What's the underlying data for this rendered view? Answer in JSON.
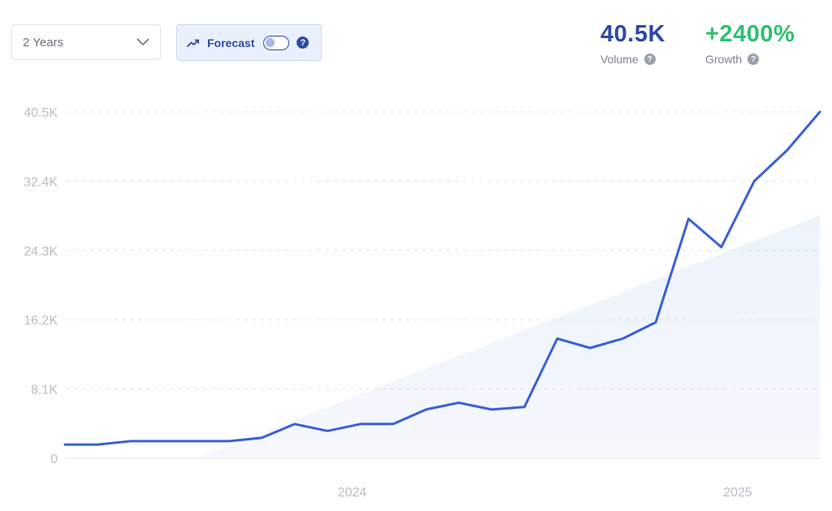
{
  "controls": {
    "range_label": "2 Years",
    "forecast_label": "Forecast",
    "forecast_enabled": false,
    "help_symbol": "?"
  },
  "metrics": {
    "volume_value": "40.5K",
    "volume_label": "Volume",
    "growth_value": "+2400%",
    "growth_label": "Growth"
  },
  "icons": {
    "range_dropdown": "chevron-down-icon",
    "forecast": "trending-up-icon",
    "help": "question-circle-icon"
  },
  "colors": {
    "line": "#3a5fd9",
    "volume": "#2c4aa3",
    "growth": "#2fbf71",
    "trend_area": "#edf3fc",
    "grid": "#e2e6ec",
    "tick": "#b9bec7"
  },
  "chart_data": {
    "type": "line",
    "title": "",
    "xlabel": "",
    "ylabel": "",
    "ylim": [
      0,
      40500
    ],
    "y_ticks": [
      0,
      8100,
      16200,
      24300,
      32400,
      40500
    ],
    "y_tick_labels": [
      "0",
      "8.1K",
      "16.2K",
      "24.3K",
      "32.4K",
      "40.5K"
    ],
    "x_tick_labels": [
      "2024",
      "2025"
    ],
    "x_tick_positions": [
      8.75,
      20.5
    ],
    "grid": true,
    "series": [
      {
        "values": [
          1600,
          1600,
          2000,
          2000,
          2000,
          2000,
          2400,
          4000,
          3200,
          4000,
          4000,
          5700,
          6500,
          5700,
          6000,
          14000,
          12900,
          14000,
          15900,
          28000,
          24700,
          32400,
          36000,
          40500
        ]
      }
    ],
    "trend_band": {
      "start_index": 4,
      "start_value": 0,
      "end_value": 28400
    }
  }
}
